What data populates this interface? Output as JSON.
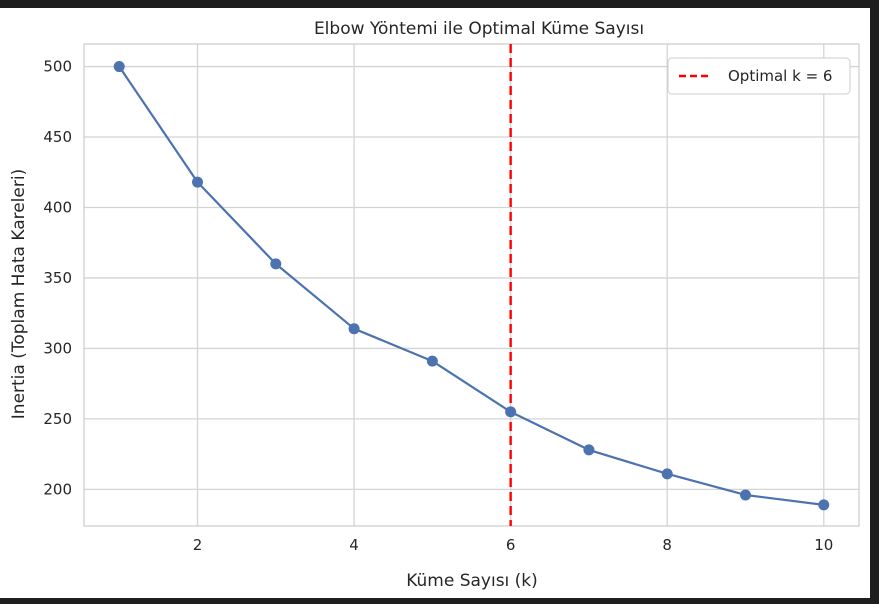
{
  "chart_data": {
    "type": "line",
    "title": "Elbow Yöntemi ile Optimal Küme Sayısı",
    "xlabel": "Küme Sayısı (k)",
    "ylabel": "Inertia (Toplam Hata Kareleri)",
    "xlim": [
      0.55,
      10.45
    ],
    "ylim": [
      174,
      516
    ],
    "xticks": [
      2,
      4,
      6,
      8,
      10
    ],
    "yticks": [
      200,
      250,
      300,
      350,
      400,
      450,
      500
    ],
    "grid": true,
    "series": [
      {
        "color": "#4c72b0",
        "x": [
          1,
          2,
          3,
          4,
          5,
          6,
          7,
          8,
          9,
          10
        ],
        "y": [
          500,
          418,
          360,
          314,
          291,
          255,
          228,
          211,
          196,
          189
        ]
      }
    ],
    "vline": {
      "x": 6,
      "label": "Optimal k = 6",
      "color": "#ff0000",
      "style": "dashed"
    },
    "legend": {
      "position": "top-right",
      "entries": [
        "Optimal k = 6"
      ]
    }
  }
}
